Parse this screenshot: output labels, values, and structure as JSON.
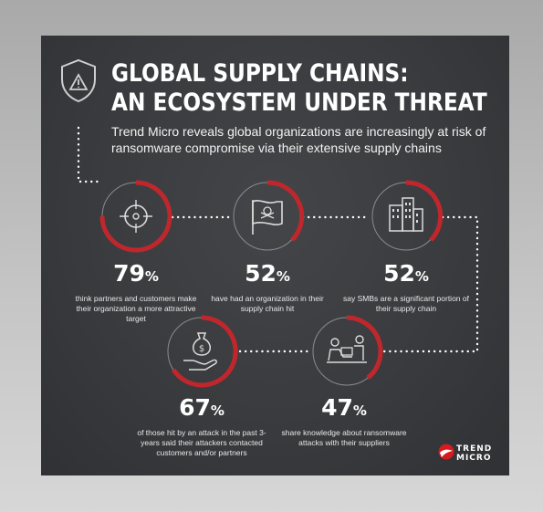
{
  "header": {
    "title_line1": "GLOBAL SUPPLY CHAINS:",
    "title_line2": "AN ECOSYSTEM UNDER THREAT",
    "subtitle": "Trend Micro reveals global organizations are increasingly at risk of ransomware compromise via their extensive supply chains"
  },
  "colors": {
    "background": "#3a3b3e",
    "accent": "#c0272d",
    "text": "#ffffff"
  },
  "stats": [
    {
      "icon": "target-crosshair-icon",
      "value": "79",
      "unit": "%",
      "description": "think partners and customers make their organization a more attractive target"
    },
    {
      "icon": "pirate-flag-icon",
      "value": "52",
      "unit": "%",
      "description": "have had an organization in their supply chain hit"
    },
    {
      "icon": "office-buildings-icon",
      "value": "52",
      "unit": "%",
      "description": "say SMBs are a significant portion of their supply chain"
    },
    {
      "icon": "money-bag-hand-icon",
      "value": "67",
      "unit": "%",
      "description": "of those hit by an attack in the past 3-years said their attackers contacted customers and/or partners"
    },
    {
      "icon": "people-collaborating-icon",
      "value": "47",
      "unit": "%",
      "description": "share knowledge about ransomware attacks with their suppliers"
    }
  ],
  "logo": {
    "line1": "TREND",
    "line2": "MICRO"
  }
}
